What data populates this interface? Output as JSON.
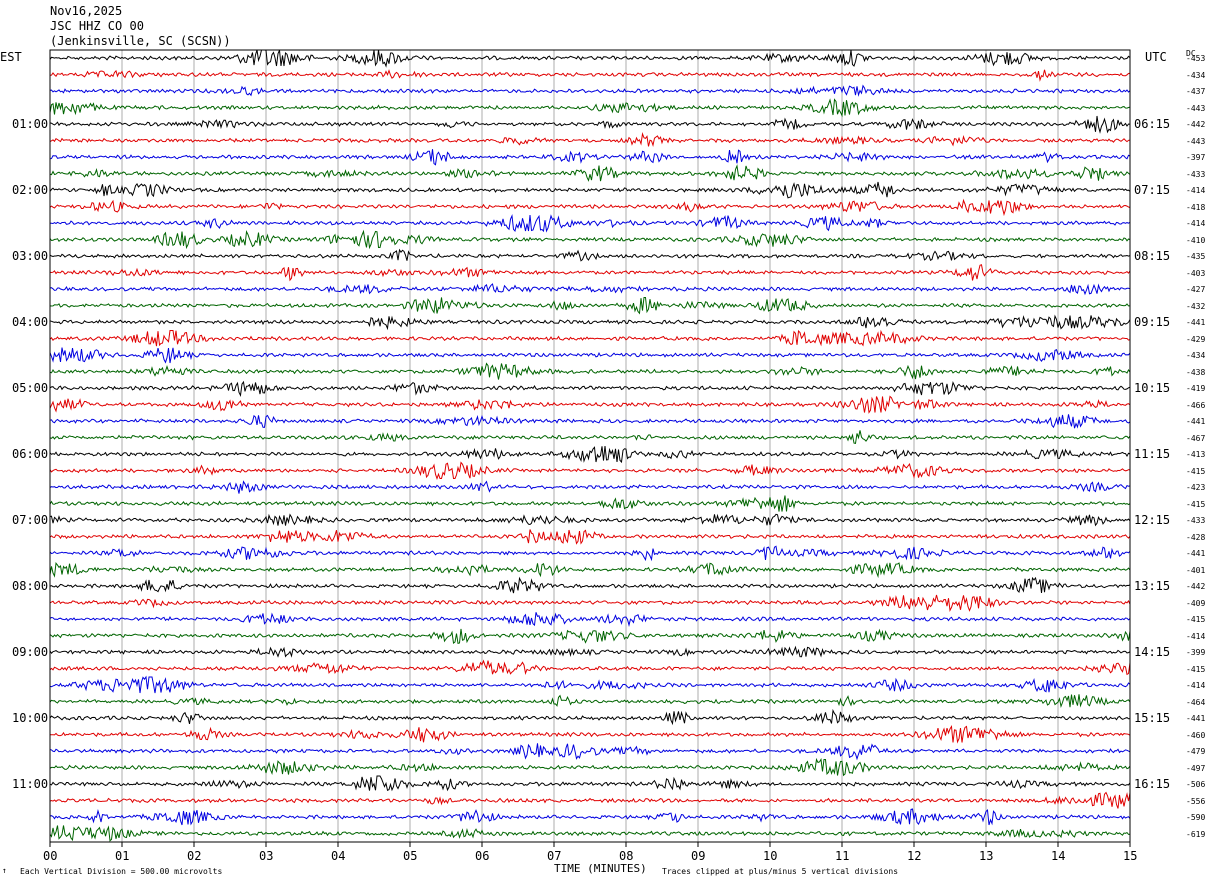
{
  "header": {
    "date": "Nov16,2025",
    "station": "JSC HHZ CO 00",
    "location": "(Jenkinsville, SC (SCSN))"
  },
  "left_axis_title": "EST",
  "right_axis_title": "UTC",
  "dc_title": "DC",
  "footer": {
    "scale_note": "Each Vertical Division =  500.00 microvolts",
    "xlabel": "TIME (MINUTES)",
    "clip_note": "Traces clipped at plus/minus 5 vertical divisions",
    "corner_mark": "↑"
  },
  "colors": {
    "trace_cycle": [
      "#000000",
      "#e00000",
      "#0000e0",
      "#006400"
    ],
    "grid": "#999999"
  },
  "chart_data": {
    "type": "line",
    "title": "JSC HHZ CO 00",
    "xlabel": "TIME (MINUTES)",
    "x_range": [
      0,
      15
    ],
    "x_ticks": [
      "00",
      "01",
      "02",
      "03",
      "04",
      "05",
      "06",
      "07",
      "08",
      "09",
      "10",
      "11",
      "12",
      "13",
      "14",
      "15"
    ],
    "left_hour_labels": [
      "01:00",
      "02:00",
      "03:00",
      "04:00",
      "05:00",
      "06:00",
      "07:00",
      "08:00",
      "09:00",
      "10:00",
      "11:00"
    ],
    "right_hour_labels": [
      "06:15",
      "07:15",
      "08:15",
      "09:15",
      "10:15",
      "11:15",
      "12:15",
      "13:15",
      "14:15",
      "15:15",
      "16:15"
    ],
    "dc_offsets": [
      -453,
      -434,
      -437,
      -443,
      -442,
      -443,
      -397,
      -433,
      -414,
      -418,
      -414,
      -410,
      -435,
      -403,
      -427,
      -432,
      -441,
      -429,
      -434,
      -438,
      -419,
      -466,
      -441,
      -467,
      -413,
      -415,
      -423,
      -415,
      -433,
      -428,
      -441,
      -401,
      -442,
      -409,
      -415,
      -414,
      -399,
      -415,
      -414,
      -464,
      -441,
      -460,
      -479,
      -497,
      -506,
      -556,
      -590,
      -619
    ],
    "trace_count": 48,
    "trace_interval_minutes": 15,
    "series_note": "seismic helicorder traces, colors cycle black/red/blue/green"
  }
}
